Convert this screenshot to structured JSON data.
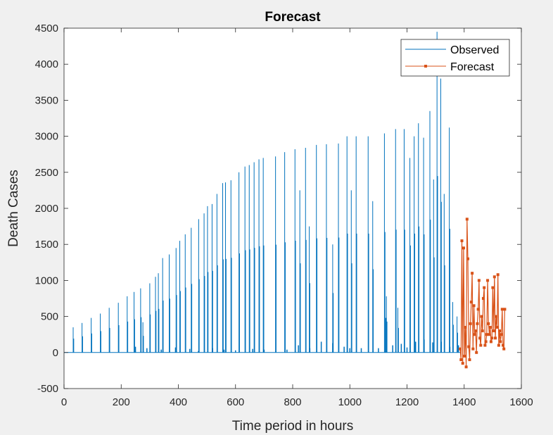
{
  "chart_data": {
    "type": "line",
    "title": "Forecast",
    "xlabel": "Time period in hours",
    "ylabel": "Death Cases",
    "xlim": [
      0,
      1600
    ],
    "ylim": [
      -500,
      4500
    ],
    "xticks": [
      0,
      200,
      400,
      600,
      800,
      1000,
      1200,
      1400,
      1600
    ],
    "yticks": [
      -500,
      0,
      500,
      1000,
      1500,
      2000,
      2500,
      3000,
      3500,
      4000,
      4500
    ],
    "grid": false,
    "legend_position": "top-right",
    "series": [
      {
        "name": "Observed",
        "color": "#0072BD",
        "marker": "none",
        "spikes": [
          [
            32,
            350
          ],
          [
            63,
            410
          ],
          [
            95,
            480
          ],
          [
            127,
            540
          ],
          [
            158,
            620
          ],
          [
            190,
            690
          ],
          [
            221,
            780
          ],
          [
            245,
            840
          ],
          [
            268,
            890
          ],
          [
            276,
            420
          ],
          [
            300,
            960
          ],
          [
            320,
            1050
          ],
          [
            330,
            1100
          ],
          [
            345,
            1310
          ],
          [
            368,
            1360
          ],
          [
            392,
            1450
          ],
          [
            405,
            1550
          ],
          [
            424,
            1640
          ],
          [
            445,
            1730
          ],
          [
            471,
            1850
          ],
          [
            490,
            1930
          ],
          [
            502,
            2030
          ],
          [
            518,
            2060
          ],
          [
            535,
            2200
          ],
          [
            555,
            2350
          ],
          [
            565,
            2360
          ],
          [
            584,
            2390
          ],
          [
            612,
            2500
          ],
          [
            633,
            2580
          ],
          [
            648,
            2600
          ],
          [
            665,
            2640
          ],
          [
            682,
            2680
          ],
          [
            697,
            2700
          ],
          [
            740,
            2720
          ],
          [
            772,
            2780
          ],
          [
            808,
            2820
          ],
          [
            825,
            2250
          ],
          [
            845,
            2840
          ],
          [
            858,
            1750
          ],
          [
            883,
            2880
          ],
          [
            918,
            2890
          ],
          [
            940,
            1500
          ],
          [
            960,
            2900
          ],
          [
            990,
            3000
          ],
          [
            1005,
            2250
          ],
          [
            1022,
            3000
          ],
          [
            1064,
            3000
          ],
          [
            1080,
            2100
          ],
          [
            1121,
            3040
          ],
          [
            1128,
            780
          ],
          [
            1160,
            3100
          ],
          [
            1168,
            620
          ],
          [
            1190,
            3100
          ],
          [
            1210,
            2700
          ],
          [
            1225,
            3000
          ],
          [
            1240,
            3180
          ],
          [
            1258,
            2980
          ],
          [
            1280,
            3350
          ],
          [
            1293,
            2400
          ],
          [
            1305,
            4450
          ],
          [
            1318,
            3800
          ],
          [
            1330,
            2200
          ],
          [
            1348,
            3120
          ],
          [
            1360,
            700
          ],
          [
            1375,
            500
          ]
        ],
        "noise_points": [
          [
            250,
            80
          ],
          [
            290,
            60
          ],
          [
            340,
            40
          ],
          [
            390,
            70
          ],
          [
            440,
            50
          ],
          [
            470,
            20
          ],
          [
            520,
            60
          ],
          [
            560,
            40
          ],
          [
            600,
            30
          ],
          [
            660,
            50
          ],
          [
            700,
            40
          ],
          [
            780,
            40
          ],
          [
            820,
            100
          ],
          [
            860,
            60
          ],
          [
            900,
            150
          ],
          [
            940,
            130
          ],
          [
            980,
            80
          ],
          [
            1000,
            60
          ],
          [
            1040,
            60
          ],
          [
            1100,
            60
          ],
          [
            1126,
            480
          ],
          [
            1150,
            100
          ],
          [
            1180,
            120
          ],
          [
            1200,
            70
          ],
          [
            1230,
            150
          ],
          [
            1260,
            180
          ],
          [
            1290,
            140
          ],
          [
            1320,
            150
          ],
          [
            1350,
            80
          ],
          [
            1380,
            100
          ]
        ]
      },
      {
        "name": "Forecast",
        "color": "#D95319",
        "marker": "square",
        "x": [
          1386,
          1389,
          1392,
          1395,
          1398,
          1401,
          1404,
          1407,
          1410,
          1413,
          1416,
          1419,
          1422,
          1425,
          1428,
          1431,
          1434,
          1437,
          1440,
          1443,
          1446,
          1449,
          1452,
          1455,
          1458,
          1461,
          1464,
          1467,
          1470,
          1473,
          1476,
          1479,
          1482,
          1485,
          1488,
          1491,
          1494,
          1497,
          1500,
          1503,
          1506,
          1509,
          1512,
          1515,
          1518,
          1521,
          1524,
          1527,
          1530,
          1533,
          1536,
          1539,
          1542
        ],
        "y": [
          50,
          -100,
          1550,
          -150,
          1450,
          -50,
          350,
          -200,
          1850,
          1300,
          80,
          -100,
          400,
          700,
          1100,
          50,
          650,
          250,
          300,
          0,
          400,
          600,
          1000,
          200,
          100,
          500,
          300,
          750,
          900,
          100,
          150,
          250,
          1000,
          400,
          250,
          350,
          150,
          200,
          900,
          300,
          1050,
          200,
          500,
          350,
          1080,
          100,
          300,
          150,
          250,
          600,
          100,
          50,
          600
        ]
      }
    ]
  }
}
